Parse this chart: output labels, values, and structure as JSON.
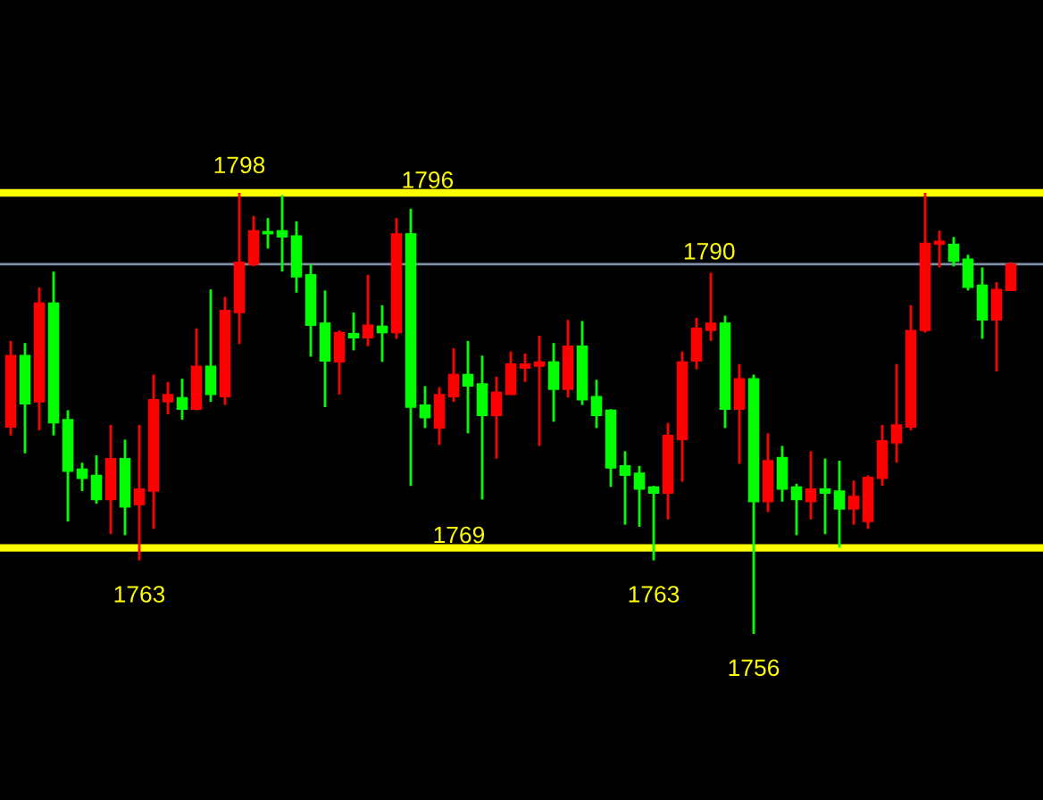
{
  "chart_data": {
    "type": "candlestick",
    "categories": [
      null,
      null,
      null,
      null,
      null,
      null,
      null,
      null,
      null,
      null,
      null,
      null,
      null,
      null,
      null,
      null,
      null,
      null,
      null,
      null,
      null,
      null,
      null,
      null,
      null,
      null,
      null,
      null,
      null,
      null,
      null,
      null,
      null,
      null,
      null,
      null,
      null,
      null,
      null,
      null,
      null,
      null,
      null,
      null,
      null,
      null,
      null,
      null,
      null,
      null,
      null,
      null,
      null,
      null,
      null,
      null,
      null,
      null,
      null,
      null,
      null,
      null,
      null,
      null,
      null,
      null,
      null,
      null,
      null,
      null,
      null
    ],
    "ohlc": [
      [
        1775.7,
        1783.9,
        1774.9,
        1782.5
      ],
      [
        1782.5,
        1783.7,
        1773.2,
        1777.9
      ],
      [
        1778.1,
        1789.0,
        1775.4,
        1787.5
      ],
      [
        1787.5,
        1790.5,
        1774.9,
        1776.1
      ],
      [
        1776.4,
        1777.3,
        1766.7,
        1771.5
      ],
      [
        1771.7,
        1772.3,
        1769.6,
        1770.8
      ],
      [
        1771.1,
        1773.0,
        1768.4,
        1768.8
      ],
      [
        1768.8,
        1775.9,
        1765.5,
        1772.7
      ],
      [
        1772.7,
        1774.5,
        1765.4,
        1768.1
      ],
      [
        1768.3,
        1775.9,
        1763.0,
        1769.8
      ],
      [
        1769.6,
        1780.7,
        1766.0,
        1778.3
      ],
      [
        1778.1,
        1780.0,
        1776.9,
        1778.8
      ],
      [
        1778.5,
        1780.3,
        1776.4,
        1777.4
      ],
      [
        1777.4,
        1785.1,
        1777.3,
        1781.5
      ],
      [
        1781.5,
        1788.8,
        1778.1,
        1778.8
      ],
      [
        1778.6,
        1788.1,
        1777.8,
        1786.8
      ],
      [
        1786.6,
        1798.0,
        1783.6,
        1791.4
      ],
      [
        1791.2,
        1795.8,
        1791.0,
        1794.4
      ],
      [
        1794.3,
        1795.6,
        1792.7,
        1794.1
      ],
      [
        1794.4,
        1797.8,
        1790.5,
        1793.8
      ],
      [
        1793.9,
        1795.3,
        1788.5,
        1790.0
      ],
      [
        1790.2,
        1791.2,
        1782.4,
        1785.4
      ],
      [
        1785.6,
        1788.7,
        1777.6,
        1782.0
      ],
      [
        1781.9,
        1784.9,
        1778.8,
        1784.7
      ],
      [
        1784.6,
        1786.6,
        1783.0,
        1784.2
      ],
      [
        1784.2,
        1790.2,
        1783.4,
        1785.4
      ],
      [
        1785.3,
        1787.3,
        1781.9,
        1784.7
      ],
      [
        1784.7,
        1795.6,
        1784.1,
        1794.1
      ],
      [
        1794.1,
        1796.5,
        1770.1,
        1777.6
      ],
      [
        1777.8,
        1779.6,
        1775.6,
        1776.6
      ],
      [
        1775.6,
        1779.5,
        1774.0,
        1778.8
      ],
      [
        1778.6,
        1783.2,
        1778.1,
        1780.7
      ],
      [
        1780.7,
        1783.9,
        1775.1,
        1779.6
      ],
      [
        1779.8,
        1782.5,
        1768.8,
        1776.8
      ],
      [
        1776.8,
        1780.5,
        1772.7,
        1779.0
      ],
      [
        1778.8,
        1782.9,
        1778.8,
        1781.7
      ],
      [
        1781.3,
        1782.7,
        1780.0,
        1781.7
      ],
      [
        1781.5,
        1784.4,
        1773.9,
        1781.9
      ],
      [
        1781.9,
        1783.7,
        1776.2,
        1779.3
      ],
      [
        1779.3,
        1785.9,
        1778.5,
        1783.4
      ],
      [
        1783.4,
        1785.8,
        1777.8,
        1778.3
      ],
      [
        1778.6,
        1780.2,
        1775.6,
        1776.8
      ],
      [
        1777.3,
        1777.4,
        1770.0,
        1771.8
      ],
      [
        1772.0,
        1773.4,
        1766.4,
        1771.1
      ],
      [
        1771.3,
        1772.0,
        1766.2,
        1769.8
      ],
      [
        1770.0,
        1770.1,
        1763.0,
        1769.4
      ],
      [
        1769.4,
        1776.1,
        1766.9,
        1774.9
      ],
      [
        1774.5,
        1782.9,
        1770.5,
        1781.9
      ],
      [
        1782.0,
        1786.1,
        1781.2,
        1785.1
      ],
      [
        1784.9,
        1790.4,
        1783.9,
        1785.6
      ],
      [
        1785.6,
        1786.3,
        1775.6,
        1777.4
      ],
      [
        1777.4,
        1781.7,
        1772.2,
        1780.3
      ],
      [
        1780.3,
        1780.7,
        1756.0,
        1768.6
      ],
      [
        1768.6,
        1775.1,
        1767.6,
        1772.5
      ],
      [
        1772.8,
        1773.9,
        1768.6,
        1769.8
      ],
      [
        1770.0,
        1770.3,
        1765.4,
        1768.8
      ],
      [
        1768.6,
        1773.4,
        1766.9,
        1769.8
      ],
      [
        1769.8,
        1772.7,
        1765.5,
        1769.4
      ],
      [
        1769.6,
        1772.5,
        1764.2,
        1767.9
      ],
      [
        1767.9,
        1770.6,
        1766.4,
        1769.1
      ],
      [
        1766.7,
        1771.1,
        1766.0,
        1770.9
      ],
      [
        1770.8,
        1775.9,
        1770.1,
        1774.4
      ],
      [
        1774.2,
        1781.7,
        1772.3,
        1775.9
      ],
      [
        1775.7,
        1787.3,
        1775.4,
        1784.9
      ],
      [
        1784.9,
        1798.0,
        1784.7,
        1793.2
      ],
      [
        1793.1,
        1794.4,
        1790.9,
        1793.4
      ],
      [
        1793.1,
        1793.8,
        1791.0,
        1791.5
      ],
      [
        1791.7,
        1792.1,
        1788.7,
        1789.0
      ],
      [
        1789.2,
        1790.9,
        1784.1,
        1785.9
      ],
      [
        1785.9,
        1789.5,
        1781.0,
        1788.8
      ],
      [
        1788.7,
        1791.4,
        1788.7,
        1791.2
      ]
    ],
    "colors": [
      "#ff0000",
      "#00ff00",
      "#ff0000",
      "#00ff00",
      "#00ff00",
      "#00ff00",
      "#00ff00",
      "#ff0000",
      "#00ff00",
      "#ff0000",
      "#ff0000",
      "#ff0000",
      "#00ff00",
      "#ff0000",
      "#00ff00",
      "#ff0000",
      "#ff0000",
      "#ff0000",
      "#00ff00",
      "#00ff00",
      "#00ff00",
      "#00ff00",
      "#00ff00",
      "#ff0000",
      "#00ff00",
      "#ff0000",
      "#00ff00",
      "#ff0000",
      "#00ff00",
      "#00ff00",
      "#ff0000",
      "#ff0000",
      "#00ff00",
      "#00ff00",
      "#ff0000",
      "#ff0000",
      "#ff0000",
      "#ff0000",
      "#00ff00",
      "#ff0000",
      "#00ff00",
      "#00ff00",
      "#00ff00",
      "#00ff00",
      "#00ff00",
      "#00ff00",
      "#ff0000",
      "#ff0000",
      "#ff0000",
      "#ff0000",
      "#00ff00",
      "#ff0000",
      "#00ff00",
      "#ff0000",
      "#00ff00",
      "#00ff00",
      "#ff0000",
      "#00ff00",
      "#00ff00",
      "#ff0000",
      "#ff0000",
      "#ff0000",
      "#ff0000",
      "#ff0000",
      "#ff0000",
      "#ff0000",
      "#00ff00",
      "#00ff00",
      "#00ff00",
      "#ff0000",
      "#ff0000"
    ],
    "ref_lines": [
      {
        "axis": "y",
        "value": 1798.0,
        "color": "#ffff00"
      },
      {
        "axis": "y",
        "value": 1791.2,
        "color": "#8090a8"
      },
      {
        "axis": "y",
        "value": 1764.2,
        "color": "#ffff00"
      }
    ],
    "annotations": [
      {
        "text": "1798",
        "y": 1798.0
      },
      {
        "text": "1763",
        "y": 1763.0
      },
      {
        "text": "1763",
        "y": 1763.0
      },
      {
        "text": "1756",
        "y": 1756.0
      },
      "1796",
      "1790",
      "1769"
    ]
  }
}
